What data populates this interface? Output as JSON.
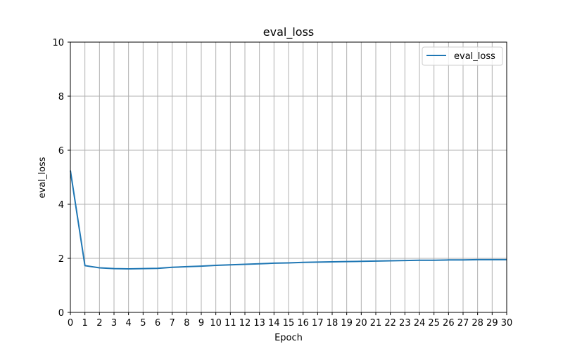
{
  "chart_data": {
    "type": "line",
    "title": "eval_loss",
    "xlabel": "Epoch",
    "ylabel": "eval_loss",
    "xlim": [
      0,
      30
    ],
    "ylim": [
      0,
      10
    ],
    "xticks": [
      0,
      1,
      2,
      3,
      4,
      5,
      6,
      7,
      8,
      9,
      10,
      11,
      12,
      13,
      14,
      15,
      16,
      17,
      18,
      19,
      20,
      21,
      22,
      23,
      24,
      25,
      26,
      27,
      28,
      29,
      30
    ],
    "yticks": [
      0,
      2,
      4,
      6,
      8,
      10
    ],
    "grid": true,
    "legend_position": "top-right",
    "x": [
      0,
      1,
      2,
      3,
      4,
      5,
      6,
      7,
      8,
      9,
      10,
      11,
      12,
      13,
      14,
      15,
      16,
      17,
      18,
      19,
      20,
      21,
      22,
      23,
      24,
      25,
      26,
      27,
      28,
      29,
      30
    ],
    "series": [
      {
        "name": "eval_loss",
        "color": "#1f77b4",
        "values": [
          5.25,
          1.73,
          1.65,
          1.62,
          1.61,
          1.62,
          1.63,
          1.67,
          1.69,
          1.71,
          1.74,
          1.76,
          1.78,
          1.8,
          1.82,
          1.83,
          1.85,
          1.86,
          1.87,
          1.88,
          1.89,
          1.9,
          1.91,
          1.92,
          1.93,
          1.93,
          1.94,
          1.94,
          1.95,
          1.95,
          1.95
        ]
      }
    ]
  }
}
